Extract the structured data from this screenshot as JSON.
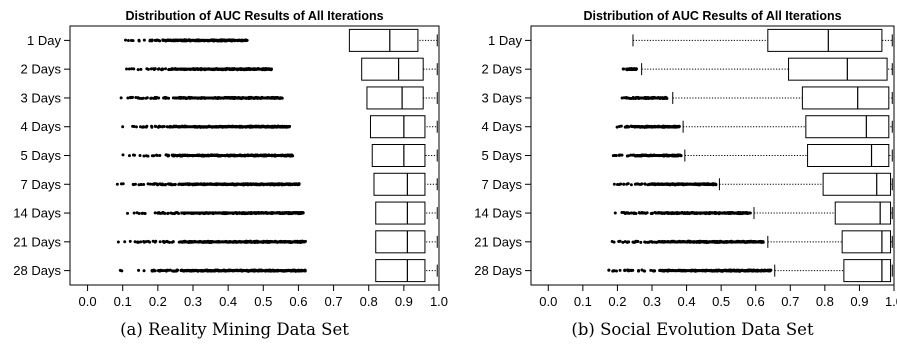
{
  "chart_data": [
    {
      "type": "boxplot",
      "title": "Distribution of AUC Results of All Iterations",
      "caption": "(a) Reality Mining Data Set",
      "xlim": [
        -0.05,
        1.0
      ],
      "x_ticks": [
        "0.0",
        "0.1",
        "0.2",
        "0.3",
        "0.4",
        "0.5",
        "0.6",
        "0.7",
        "0.8",
        "0.9",
        "1.0"
      ],
      "categories": [
        "1 Day",
        "2 Days",
        "3 Days",
        "4 Days",
        "5 Days",
        "7 Days",
        "14 Days",
        "21 Days",
        "28 Days"
      ],
      "boxes": [
        {
          "whisker_low": 0.745,
          "q1": 0.745,
          "median": 0.86,
          "q3": 0.94,
          "whisker_high": 0.995,
          "outlier_min": 0.08,
          "outlier_max": 0.455
        },
        {
          "whisker_low": 0.78,
          "q1": 0.78,
          "median": 0.885,
          "q3": 0.955,
          "whisker_high": 0.995,
          "outlier_min": 0.085,
          "outlier_max": 0.525
        },
        {
          "whisker_low": 0.795,
          "q1": 0.795,
          "median": 0.895,
          "q3": 0.955,
          "whisker_high": 0.995,
          "outlier_min": 0.08,
          "outlier_max": 0.555
        },
        {
          "whisker_low": 0.805,
          "q1": 0.805,
          "median": 0.9,
          "q3": 0.96,
          "whisker_high": 0.995,
          "outlier_min": 0.08,
          "outlier_max": 0.575
        },
        {
          "whisker_low": 0.81,
          "q1": 0.81,
          "median": 0.9,
          "q3": 0.96,
          "whisker_high": 0.995,
          "outlier_min": 0.075,
          "outlier_max": 0.585
        },
        {
          "whisker_low": 0.815,
          "q1": 0.815,
          "median": 0.91,
          "q3": 0.96,
          "whisker_high": 0.995,
          "outlier_min": 0.08,
          "outlier_max": 0.605
        },
        {
          "whisker_low": 0.82,
          "q1": 0.82,
          "median": 0.91,
          "q3": 0.96,
          "whisker_high": 0.995,
          "outlier_min": 0.075,
          "outlier_max": 0.615
        },
        {
          "whisker_low": 0.82,
          "q1": 0.82,
          "median": 0.91,
          "q3": 0.96,
          "whisker_high": 0.995,
          "outlier_min": 0.07,
          "outlier_max": 0.62
        },
        {
          "whisker_low": 0.82,
          "q1": 0.82,
          "median": 0.91,
          "q3": 0.96,
          "whisker_high": 0.995,
          "outlier_min": 0.075,
          "outlier_max": 0.62
        }
      ]
    },
    {
      "type": "boxplot",
      "title": "Distribution of AUC Results of All Iterations",
      "caption": "(b) Social Evolution Data Set",
      "xlim": [
        -0.05,
        1.0
      ],
      "x_ticks": [
        "0.0",
        "0.1",
        "0.2",
        "0.3",
        "0.4",
        "0.5",
        "0.6",
        "0.7",
        "0.8",
        "0.9",
        "1.0"
      ],
      "categories": [
        "1 Day",
        "2 Days",
        "3 Days",
        "4 Days",
        "5 Days",
        "7 Days",
        "14 Days",
        "21 Days",
        "28 Days"
      ],
      "boxes": [
        {
          "whisker_low": 0.245,
          "q1": 0.635,
          "median": 0.81,
          "q3": 0.965,
          "whisker_high": 0.995,
          "outlier_min": null,
          "outlier_max": null
        },
        {
          "whisker_low": 0.27,
          "q1": 0.695,
          "median": 0.865,
          "q3": 0.98,
          "whisker_high": 0.995,
          "outlier_min": 0.205,
          "outlier_max": 0.255
        },
        {
          "whisker_low": 0.36,
          "q1": 0.735,
          "median": 0.895,
          "q3": 0.985,
          "whisker_high": 0.995,
          "outlier_min": 0.2,
          "outlier_max": 0.345
        },
        {
          "whisker_low": 0.39,
          "q1": 0.745,
          "median": 0.92,
          "q3": 0.985,
          "whisker_high": 0.995,
          "outlier_min": 0.185,
          "outlier_max": 0.38
        },
        {
          "whisker_low": 0.395,
          "q1": 0.75,
          "median": 0.935,
          "q3": 0.985,
          "whisker_high": 0.995,
          "outlier_min": 0.18,
          "outlier_max": 0.385
        },
        {
          "whisker_low": 0.495,
          "q1": 0.795,
          "median": 0.95,
          "q3": 0.99,
          "whisker_high": 0.995,
          "outlier_min": 0.185,
          "outlier_max": 0.485
        },
        {
          "whisker_low": 0.595,
          "q1": 0.83,
          "median": 0.96,
          "q3": 0.99,
          "whisker_high": 0.995,
          "outlier_min": 0.16,
          "outlier_max": 0.585
        },
        {
          "whisker_low": 0.635,
          "q1": 0.85,
          "median": 0.965,
          "q3": 0.99,
          "whisker_high": 0.995,
          "outlier_min": 0.155,
          "outlier_max": 0.625
        },
        {
          "whisker_low": 0.655,
          "q1": 0.855,
          "median": 0.965,
          "q3": 0.99,
          "whisker_high": 0.995,
          "outlier_min": 0.15,
          "outlier_max": 0.645
        }
      ]
    }
  ]
}
